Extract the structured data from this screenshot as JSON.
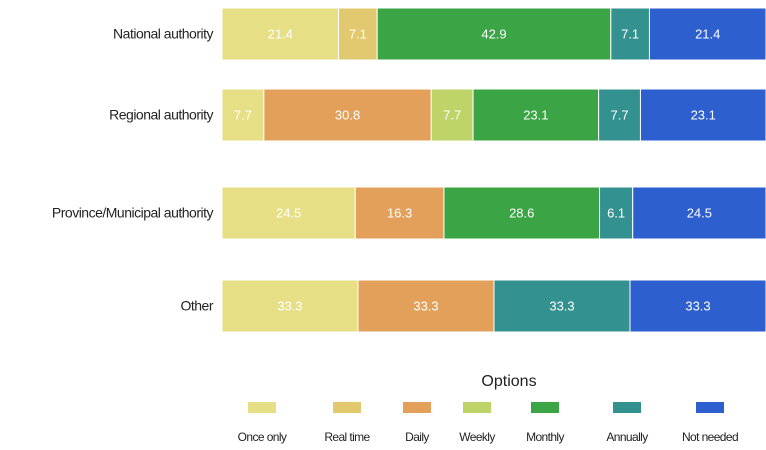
{
  "chart_data": {
    "type": "stacked_barh",
    "categories": [
      "National authority",
      "Regional authority",
      "Province/Municipal authority",
      "Other"
    ],
    "legend_title": "Options",
    "legend": "bottom",
    "series": [
      {
        "name": "Once only",
        "color": "#e6df86",
        "values": [
          21.4,
          7.7,
          24.5,
          33.3
        ]
      },
      {
        "name": "Real time",
        "color": "#e2c96f",
        "values": [
          7.1,
          null,
          null,
          null
        ]
      },
      {
        "name": "Daily",
        "color": "#e3a05b",
        "values": [
          null,
          30.8,
          16.3,
          33.3
        ]
      },
      {
        "name": "Weekly",
        "color": "#bed468",
        "values": [
          null,
          7.7,
          null,
          null
        ]
      },
      {
        "name": "Monthly",
        "color": "#3ba445",
        "values": [
          42.9,
          23.1,
          28.6,
          null
        ]
      },
      {
        "name": "Annually",
        "color": "#33928f",
        "values": [
          7.1,
          7.7,
          6.1,
          33.3
        ]
      },
      {
        "name": "Not needed",
        "color": "#2e5fce",
        "values": [
          21.4,
          23.1,
          24.5,
          33.3
        ]
      }
    ]
  }
}
